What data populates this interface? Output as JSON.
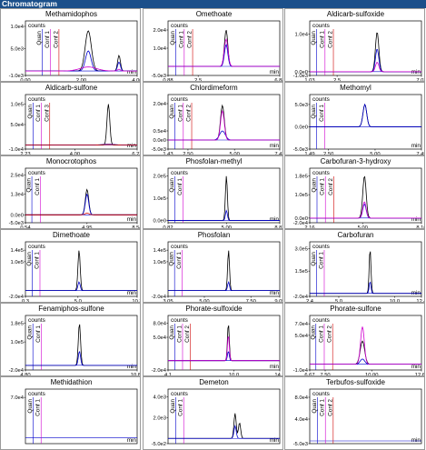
{
  "header": {
    "title": "Chromatogram"
  },
  "chart_data": [
    {
      "type": "line",
      "title": "Methamidophos",
      "counts_label": "counts",
      "xunit": "min",
      "yticks": [
        "1.0e4",
        "5.0e3",
        "-1.0e3"
      ],
      "xticks": [
        "0.00",
        "2.00",
        "4.00"
      ],
      "ylim": [
        -1000,
        10000
      ],
      "xlim": [
        0,
        4
      ],
      "markers": [
        {
          "label": "Quan",
          "x": 0.6
        },
        {
          "label": "Conf 1",
          "x": 0.9
        },
        {
          "label": "Conf 2",
          "x": 1.2
        }
      ],
      "series": [
        {
          "color": "#000000",
          "peaks": [
            [
              2.25,
              9000,
              0.11
            ],
            [
              3.35,
              3500,
              0.05
            ]
          ]
        },
        {
          "color": "#0000cc",
          "peaks": [
            [
              2.25,
              4500,
              0.1
            ],
            [
              3.35,
              2000,
              0.05
            ]
          ]
        },
        {
          "color": "#d000d0",
          "peaks": [
            [
              2.25,
              900,
              0.3
            ],
            [
              3.35,
              400,
              0.05
            ]
          ]
        }
      ]
    },
    {
      "type": "line",
      "title": "Omethoate",
      "counts_label": "counts",
      "xunit": "min",
      "yticks": [
        "2.0e4",
        "1.0e4",
        "-5.0e3"
      ],
      "xticks": [
        "0.88",
        "2.5",
        "6.88"
      ],
      "ylim": [
        -5000,
        22000
      ],
      "xlim": [
        0.88,
        6.88
      ],
      "markers": [
        {
          "label": "Quan",
          "x": 1.3
        },
        {
          "label": "Conf 1",
          "x": 1.75
        },
        {
          "label": "Conf 2",
          "x": 2.2
        }
      ],
      "series": [
        {
          "color": "#000000",
          "peaks": [
            [
              4.0,
              20000,
              0.09
            ]
          ]
        },
        {
          "color": "#0000cc",
          "peaks": [
            [
              4.0,
              12000,
              0.09
            ]
          ]
        },
        {
          "color": "#d000d0",
          "peaks": [
            [
              4.0,
              15000,
              0.1
            ]
          ]
        }
      ]
    },
    {
      "type": "line",
      "title": "Aldicarb-sulfoxide",
      "counts_label": "counts",
      "xunit": "min",
      "yticks": [
        "1.0e4",
        "0.0e0",
        "-1.0e3"
      ],
      "xticks": [
        "1.03",
        "2.5",
        "7.03"
      ],
      "ylim": [
        -1000,
        12000
      ],
      "xlim": [
        1.03,
        7.03
      ],
      "markers": [
        {
          "label": "Quan",
          "x": 1.4
        },
        {
          "label": "Conf 1",
          "x": 1.85
        },
        {
          "label": "Conf 2",
          "x": 2.3
        }
      ],
      "series": [
        {
          "color": "#000000",
          "peaks": [
            [
              4.65,
              10500,
              0.09
            ]
          ]
        },
        {
          "color": "#0000cc",
          "peaks": [
            [
              4.65,
              6000,
              0.09
            ]
          ]
        },
        {
          "color": "#d000d0",
          "peaks": [
            [
              4.65,
              2500,
              0.09
            ]
          ]
        }
      ]
    },
    {
      "type": "line",
      "title": "Aldicarb-sulfone",
      "counts_label": "counts",
      "xunit": "min",
      "yticks": [
        "1.0e5",
        "5.0e4",
        "-1.0e4"
      ],
      "xticks": [
        "2.23",
        "4.00",
        "6.23"
      ],
      "ylim": [
        -10000,
        110000
      ],
      "xlim": [
        2.23,
        6.23
      ],
      "markers": [
        {
          "label": "Quan",
          "x": 2.5
        },
        {
          "label": "Conf 1",
          "x": 2.8
        },
        {
          "label": "Conf 3",
          "x": 3.1
        }
      ],
      "series": [
        {
          "color": "#000000",
          "peaks": [
            [
              5.2,
              100000,
              0.05
            ]
          ]
        },
        {
          "color": "#0000cc",
          "peaks": [
            [
              5.2,
              2000,
              0.2
            ]
          ]
        },
        {
          "color": "#d00000",
          "peaks": [
            [
              5.2,
              1000,
              0.2
            ]
          ]
        }
      ]
    },
    {
      "type": "line",
      "title": "Chlordimeform",
      "counts_label": "counts",
      "xunit": "min",
      "yticks": [
        "2.0e4",
        "0.5e4",
        "0.0e0",
        "-5.0e3"
      ],
      "xticks": [
        "1.43",
        "2.50",
        "5.00",
        "7.43"
      ],
      "ylim": [
        -5000,
        22000
      ],
      "xlim": [
        1.43,
        7.43
      ],
      "markers": [
        {
          "label": "Quan",
          "x": 1.8
        },
        {
          "label": "Conf 1",
          "x": 2.25
        },
        {
          "label": "Conf 2",
          "x": 2.7
        }
      ],
      "series": [
        {
          "color": "#000000",
          "peaks": [
            [
              4.35,
              19000,
              0.1
            ]
          ]
        },
        {
          "color": "#0000cc",
          "peaks": [
            [
              4.35,
              5000,
              0.15
            ]
          ]
        },
        {
          "color": "#d000d0",
          "peaks": [
            [
              4.35,
              16000,
              0.1
            ]
          ]
        }
      ]
    },
    {
      "type": "line",
      "title": "Methomyl",
      "counts_label": "counts",
      "xunit": "min",
      "yticks": [
        "5.0e3",
        "0.0e0",
        "-5.0e3"
      ],
      "xticks": [
        "1.49",
        "2.50",
        "5.00",
        "7.49"
      ],
      "ylim": [
        -5000,
        6000
      ],
      "xlim": [
        1.49,
        7.49
      ],
      "markers": [
        {
          "label": "Quan",
          "x": 1.85
        },
        {
          "label": "Conf 1",
          "x": 2.3
        }
      ],
      "series": [
        {
          "color": "#000000",
          "peaks": [
            [
              4.45,
              5000,
              0.1
            ]
          ]
        },
        {
          "color": "#0000cc",
          "peaks": [
            [
              4.45,
              5000,
              0.1
            ]
          ]
        }
      ]
    },
    {
      "type": "line",
      "title": "Monocrotophos",
      "counts_label": "counts",
      "xunit": "min",
      "yticks": [
        "2.5e4",
        "1.3e4",
        "0.0e0",
        "-5.0e3"
      ],
      "xticks": [
        "0.54",
        "4.95",
        "8.54"
      ],
      "ylim": [
        -5000,
        26000
      ],
      "xlim": [
        0.54,
        8.54
      ],
      "markers": [
        {
          "label": "Quan",
          "x": 1.0
        },
        {
          "label": "Conf 1",
          "x": 1.6
        }
      ],
      "series": [
        {
          "color": "#000000",
          "peaks": [
            [
              4.95,
              16000,
              0.12
            ]
          ]
        },
        {
          "color": "#0000cc",
          "peaks": [
            [
              4.95,
              13000,
              0.12
            ]
          ]
        },
        {
          "color": "#d00000",
          "peaks": [
            [
              4.95,
              1000,
              0.15
            ]
          ]
        }
      ]
    },
    {
      "type": "line",
      "title": "Phosfolan-methyl",
      "counts_label": "counts",
      "xunit": "min",
      "yticks": [
        "2.0e5",
        "1.0e5",
        "0.0e0"
      ],
      "xticks": [
        "0.82",
        "5.00",
        "8.82"
      ],
      "ylim": [
        -10000,
        210000
      ],
      "xlim": [
        0.82,
        8.82
      ],
      "markers": [
        {
          "label": "Quan",
          "x": 1.3
        },
        {
          "label": "Conf 1",
          "x": 1.9
        }
      ],
      "series": [
        {
          "color": "#000000",
          "peaks": [
            [
              5.0,
              200000,
              0.07
            ]
          ]
        },
        {
          "color": "#0000cc",
          "peaks": [
            [
              5.0,
              45000,
              0.07
            ]
          ]
        }
      ]
    },
    {
      "type": "line",
      "title": "Carbofuran-3-hydroxy",
      "counts_label": "counts",
      "xunit": "min",
      "yticks": [
        "1.8e5",
        "1.0e5",
        "0.0e0",
        "-2.0e4"
      ],
      "xticks": [
        "2.16",
        "5.00",
        "8.16"
      ],
      "ylim": [
        -20000,
        190000
      ],
      "xlim": [
        2.16,
        8.16
      ],
      "markers": [
        {
          "label": "Quan",
          "x": 2.55
        },
        {
          "label": "Conf 1",
          "x": 3.0
        },
        {
          "label": "Conf 2",
          "x": 3.45
        }
      ],
      "series": [
        {
          "color": "#000000",
          "peaks": [
            [
              5.1,
              180000,
              0.09
            ]
          ]
        },
        {
          "color": "#0000cc",
          "peaks": [
            [
              5.1,
              60000,
              0.09
            ]
          ]
        },
        {
          "color": "#d000d0",
          "peaks": [
            [
              5.1,
              70000,
              0.09
            ]
          ]
        }
      ]
    },
    {
      "type": "line",
      "title": "Dimethoate",
      "counts_label": "counts",
      "xunit": "min",
      "yticks": [
        "1.4e5",
        "1.0e5",
        "-2.0e4"
      ],
      "xticks": [
        "0.3",
        "5.0",
        "10.3"
      ],
      "ylim": [
        -20000,
        150000
      ],
      "xlim": [
        0.3,
        10.3
      ],
      "markers": [
        {
          "label": "Quan",
          "x": 0.9
        },
        {
          "label": "Conf 1",
          "x": 1.6
        }
      ],
      "series": [
        {
          "color": "#000000",
          "peaks": [
            [
              5.1,
              140000,
              0.1
            ]
          ]
        },
        {
          "color": "#0000cc",
          "peaks": [
            [
              5.1,
              30000,
              0.1
            ]
          ]
        }
      ]
    },
    {
      "type": "line",
      "title": "Phosfolan",
      "counts_label": "counts",
      "xunit": "min",
      "yticks": [
        "1.4e5",
        "1.0e5",
        "-2.0e4"
      ],
      "xticks": [
        "3.05",
        "5.00",
        "7.50",
        "9.05"
      ],
      "ylim": [
        -20000,
        150000
      ],
      "xlim": [
        3.05,
        9.05
      ],
      "markers": [
        {
          "label": "Quan",
          "x": 3.4
        },
        {
          "label": "Conf 1",
          "x": 3.8
        }
      ],
      "series": [
        {
          "color": "#000000",
          "peaks": [
            [
              6.3,
              140000,
              0.05
            ]
          ]
        },
        {
          "color": "#0000cc",
          "peaks": [
            [
              6.3,
              30000,
              0.05
            ]
          ]
        }
      ]
    },
    {
      "type": "line",
      "title": "Carbofuran",
      "counts_label": "counts",
      "xunit": "min",
      "yticks": [
        "3.0e5",
        "1.5e5",
        "-2.0e4"
      ],
      "xticks": [
        "2.4",
        "5.0",
        "10.0",
        "12.4"
      ],
      "ylim": [
        -20000,
        310000
      ],
      "xlim": [
        2.4,
        12.4
      ],
      "markers": [
        {
          "label": "Quan",
          "x": 3.0
        },
        {
          "label": "Conf 1",
          "x": 3.7
        }
      ],
      "series": [
        {
          "color": "#000000",
          "peaks": [
            [
              7.8,
              300000,
              0.08
            ]
          ]
        },
        {
          "color": "#0000cc",
          "peaks": [
            [
              7.8,
              80000,
              0.08
            ]
          ]
        }
      ]
    },
    {
      "type": "line",
      "title": "Fenamiphos-sulfone",
      "counts_label": "counts",
      "xunit": "min",
      "yticks": [
        "1.8e5",
        "1.0e5",
        "-2.0e4"
      ],
      "xticks": [
        "4.80",
        "10.80"
      ],
      "ylim": [
        -20000,
        190000
      ],
      "xlim": [
        4.8,
        10.8
      ],
      "markers": [
        {
          "label": "Quan",
          "x": 5.2
        },
        {
          "label": "Conf 1",
          "x": 5.65
        }
      ],
      "series": [
        {
          "color": "#000000",
          "peaks": [
            [
              7.7,
              180000,
              0.06
            ]
          ]
        },
        {
          "color": "#0000cc",
          "peaks": [
            [
              7.7,
              60000,
              0.06
            ]
          ]
        }
      ]
    },
    {
      "type": "line",
      "title": "Phorate-sulfoxide",
      "counts_label": "counts",
      "xunit": "min",
      "yticks": [
        "8.0e4",
        "5.0e4",
        "-2.0e4"
      ],
      "xticks": [
        "4.1",
        "10.0",
        "14.1"
      ],
      "ylim": [
        -20000,
        85000
      ],
      "xlim": [
        4.1,
        14.1
      ],
      "markers": [
        {
          "label": "Quan",
          "x": 4.7
        },
        {
          "label": "Conf 1",
          "x": 5.4
        },
        {
          "label": "Conf 2",
          "x": 6.1
        }
      ],
      "series": [
        {
          "color": "#000000",
          "peaks": [
            [
              9.5,
              80000,
              0.08
            ]
          ]
        },
        {
          "color": "#0000cc",
          "peaks": [
            [
              9.5,
              20000,
              0.08
            ]
          ]
        },
        {
          "color": "#d000d0",
          "peaks": [
            [
              9.5,
              55000,
              0.08
            ]
          ]
        }
      ]
    },
    {
      "type": "line",
      "title": "Phorate-sulfone",
      "counts_label": "counts",
      "xunit": "min",
      "yticks": [
        "7.0e4",
        "5.0e4",
        "-1.0e4"
      ],
      "xticks": [
        "6.67",
        "7.50",
        "10.00",
        "12.67"
      ],
      "ylim": [
        -10000,
        75000
      ],
      "xlim": [
        6.67,
        12.67
      ],
      "markers": [
        {
          "label": "Quan",
          "x": 7.0
        },
        {
          "label": "Conf 1",
          "x": 7.45
        },
        {
          "label": "Conf 2",
          "x": 7.9
        }
      ],
      "series": [
        {
          "color": "#000000",
          "peaks": [
            [
              9.5,
              40000,
              0.12
            ]
          ]
        },
        {
          "color": "#0000cc",
          "peaks": [
            [
              9.5,
              9000,
              0.12
            ]
          ]
        },
        {
          "color": "#d000d0",
          "peaks": [
            [
              9.5,
              65000,
              0.1
            ]
          ]
        }
      ]
    },
    {
      "type": "line",
      "title": "Methidathion",
      "counts_label": "counts",
      "xunit": "min",
      "yticks": [
        "7.0e4"
      ],
      "xticks": [],
      "ylim": [
        -10000,
        75000
      ],
      "xlim": [
        0,
        10
      ],
      "markers": [
        {
          "label": "Quan",
          "x": 0.7
        },
        {
          "label": "Conf 1",
          "x": 1.4
        }
      ],
      "series": [
        {
          "color": "#000000",
          "peaks": []
        },
        {
          "color": "#0000cc",
          "peaks": []
        }
      ]
    },
    {
      "type": "line",
      "title": "Demeton",
      "counts_label": "counts",
      "xunit": "min",
      "yticks": [
        "4.0e3",
        "2.0e3",
        "-5.0e2"
      ],
      "xticks": [],
      "ylim": [
        -500,
        4200
      ],
      "xlim": [
        0,
        10
      ],
      "markers": [
        {
          "label": "Quan",
          "x": 0.7
        },
        {
          "label": "Conf 1",
          "x": 1.4
        }
      ],
      "series": [
        {
          "color": "#000000",
          "peaks": [
            [
              6.0,
              2400,
              0.1
            ],
            [
              6.4,
              1500,
              0.1
            ]
          ]
        },
        {
          "color": "#0000cc",
          "peaks": [
            [
              6.0,
              1200,
              0.1
            ]
          ]
        }
      ]
    },
    {
      "type": "line",
      "title": "Terbufos-sulfoxide",
      "counts_label": "counts",
      "xunit": "min",
      "yticks": [
        "8.0e4",
        "4.0e4",
        "-5.0e3"
      ],
      "xticks": [],
      "ylim": [
        -5000,
        85000
      ],
      "xlim": [
        0,
        10
      ],
      "markers": [
        {
          "label": "Quan",
          "x": 0.7
        },
        {
          "label": "Conf 1",
          "x": 1.4
        },
        {
          "label": "Conf 2",
          "x": 2.1
        }
      ],
      "series": [
        {
          "color": "#000000",
          "peaks": []
        },
        {
          "color": "#0000cc",
          "peaks": []
        },
        {
          "color": "#d000d0",
          "peaks": []
        }
      ]
    }
  ]
}
